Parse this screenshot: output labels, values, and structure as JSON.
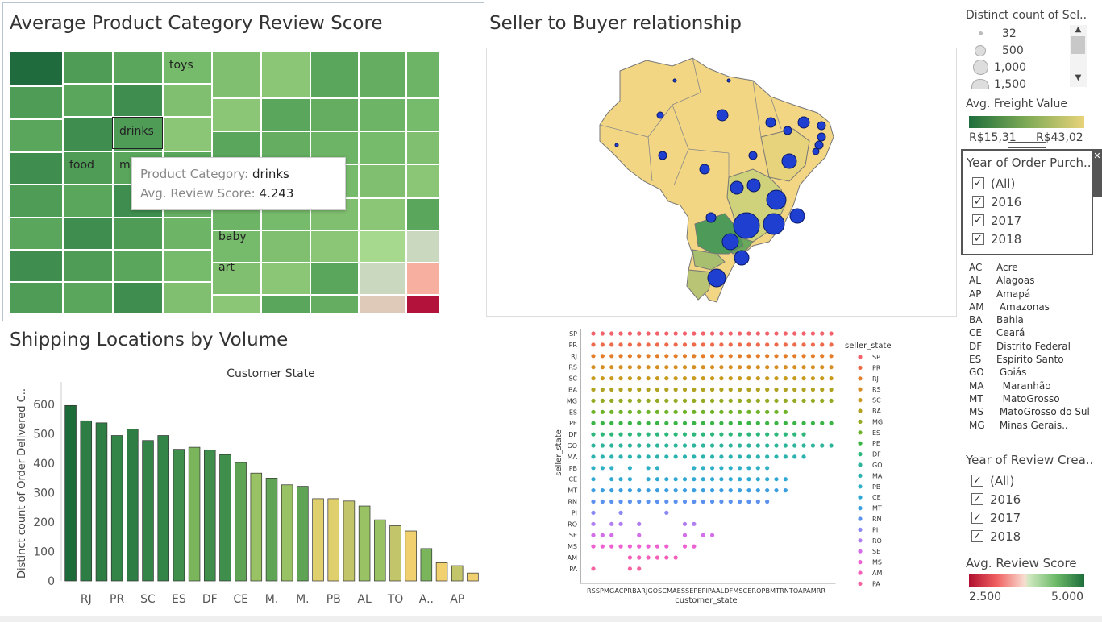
{
  "treemap": {
    "title": "Average Product Category Review Score",
    "labels": {
      "toys": "toys",
      "drinks": "drinks",
      "food": "food",
      "mu": "mu",
      "baby": "baby",
      "art": "art"
    },
    "tooltip": {
      "k1": "Product Category:",
      "v1": "drinks",
      "k2": "Avg. Review Score:",
      "v2": "4.243"
    }
  },
  "map": {
    "title": "Seller to Buyer relationship"
  },
  "bars": {
    "title": "Shipping Locations by Volume",
    "header": "Customer State",
    "ylabel": "Distinct count of Order Delivered C..",
    "yticks": [
      "600",
      "500",
      "400",
      "300",
      "200",
      "100",
      "0"
    ],
    "xticks": [
      "RJ",
      "PR",
      "SC",
      "ES",
      "DF",
      "CE",
      "M.",
      "M.",
      "PB",
      "AL",
      "TO",
      "A..",
      "AP"
    ]
  },
  "chart_data": {
    "type": "bar",
    "title": "Shipping Locations by Volume",
    "xlabel": "Customer State",
    "ylabel": "Distinct count of Order Delivered C..",
    "ylim": [
      0,
      650
    ],
    "values": [
      597,
      545,
      538,
      495,
      517,
      478,
      495,
      448,
      455,
      445,
      430,
      403,
      367,
      350,
      327,
      322,
      280,
      280,
      272,
      255,
      208,
      188,
      170,
      110,
      62,
      52,
      27
    ],
    "colors": [
      "#1d6b39",
      "#2d7d44",
      "#2d7d44",
      "#338447",
      "#2d7d44",
      "#338447",
      "#338447",
      "#3f8e4c",
      "#7ab55c",
      "#3f8e4c",
      "#3f8e4c",
      "#5fa454",
      "#98c263",
      "#5fa454",
      "#98c263",
      "#5fa454",
      "#e0d06d",
      "#e0d06d",
      "#c3c56a",
      "#98c263",
      "#98c263",
      "#c3c56a",
      "#f0d06f",
      "#7ab55c",
      "#f0d06f",
      "#c3c56a",
      "#f0d06f"
    ]
  },
  "scatter": {
    "ylabel": "seller_state",
    "xlabel": "customer_state",
    "ylabels": [
      "SP",
      "PR",
      "RJ",
      "RS",
      "SC",
      "BA",
      "MG",
      "ES",
      "PE",
      "DF",
      "GO",
      "MA",
      "PB",
      "CE",
      "MT",
      "RN",
      "PI",
      "RO",
      "SE",
      "MS",
      "AM",
      "PA"
    ],
    "xlabels": "RSSPMGACPRBARJGOSCMAESSEPEPIPAALDFMSCEROPBMTRNTOAPAMRR",
    "legend_title": "seller_state",
    "legend": [
      "SP",
      "PR",
      "RJ",
      "RS",
      "SC",
      "BA",
      "MG",
      "ES",
      "PE",
      "DF",
      "GO",
      "MA",
      "PB",
      "CE",
      "MT",
      "RN",
      "PI",
      "RO",
      "SE",
      "MS",
      "AM",
      "PA"
    ],
    "legend_colors": [
      "#f2626b",
      "#ed6a4a",
      "#e47d2a",
      "#d68d22",
      "#c89a1e",
      "#b0a321",
      "#94aa22",
      "#6eb22a",
      "#3ab444",
      "#2db77a",
      "#2db49a",
      "#2cb3ae",
      "#30b0c6",
      "#2fa9d4",
      "#3a9ee1",
      "#5b91ef",
      "#8a88f2",
      "#b07ef0",
      "#d36ee8",
      "#ed61d3",
      "#f35fb9",
      "#f564a0"
    ]
  },
  "sidebar": {
    "size_legend_title": "Distinct count of Sel..",
    "size_values": [
      "32",
      "500",
      "1,000",
      "1,500"
    ],
    "freight_title": "Avg. Freight Value",
    "freight_min": "R$15,31",
    "freight_max": "R$43,02",
    "year_purchase_title": "Year of Order Purch..",
    "year_purchase_items": [
      "(All)",
      "2016",
      "2017",
      "2018"
    ],
    "states": [
      {
        "ab": "AC",
        "name": "Acre"
      },
      {
        "ab": "AL",
        "name": "Alagoas"
      },
      {
        "ab": "AP",
        "name": "Amapá"
      },
      {
        "ab": "AM",
        "name": " Amazonas"
      },
      {
        "ab": "BA",
        "name": "Bahia"
      },
      {
        "ab": "CE",
        "name": "Ceará"
      },
      {
        "ab": "DF",
        "name": "Distrito Federal"
      },
      {
        "ab": "ES",
        "name": "Espírito Santo"
      },
      {
        "ab": "GO",
        "name": " Goiás"
      },
      {
        "ab": "MA",
        "name": "  Maranhão"
      },
      {
        "ab": "MT",
        "name": "  MatoGrosso"
      },
      {
        "ab": "MS",
        "name": " MatoGrosso do Sul"
      },
      {
        "ab": "MG",
        "name": " Minas Gerais.."
      }
    ],
    "year_review_title": "Year of Review Crea..",
    "year_review_items": [
      "(All)",
      "2016",
      "2017",
      "2018"
    ],
    "review_title": "Avg. Review Score",
    "review_min": "2.500",
    "review_max": "5.000",
    "check_mark": "✓",
    "close_glyph": "✕"
  }
}
